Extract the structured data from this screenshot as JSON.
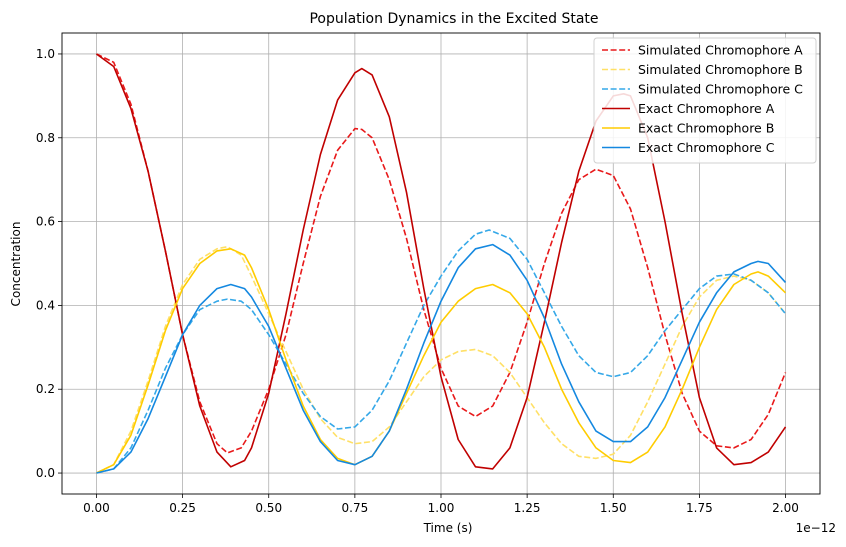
{
  "chart_data": {
    "type": "line",
    "title": "Population Dynamics in the Excited State",
    "xlabel": "Time (s)",
    "ylabel": "Concentration",
    "x_offset_label": "1e−12",
    "xlim": [
      -0.1,
      2.1
    ],
    "ylim": [
      -0.05,
      1.05
    ],
    "xticks": [
      0.0,
      0.25,
      0.5,
      0.75,
      1.0,
      1.25,
      1.5,
      1.75,
      2.0
    ],
    "xtick_labels": [
      "0.00",
      "0.25",
      "0.50",
      "0.75",
      "1.00",
      "1.25",
      "1.50",
      "1.75",
      "2.00"
    ],
    "yticks": [
      0.0,
      0.2,
      0.4,
      0.6,
      0.8,
      1.0
    ],
    "ytick_labels": [
      "0.0",
      "0.2",
      "0.4",
      "0.6",
      "0.8",
      "1.0"
    ],
    "grid": true,
    "legend_position": "top-right",
    "series": [
      {
        "name": "Simulated Chromophore A",
        "color": "#e8191a",
        "style": "dashed",
        "points": [
          [
            0.0,
            1.0
          ],
          [
            0.05,
            0.98
          ],
          [
            0.1,
            0.88
          ],
          [
            0.15,
            0.72
          ],
          [
            0.2,
            0.53
          ],
          [
            0.25,
            0.33
          ],
          [
            0.3,
            0.17
          ],
          [
            0.35,
            0.07
          ],
          [
            0.38,
            0.048
          ],
          [
            0.42,
            0.06
          ],
          [
            0.45,
            0.1
          ],
          [
            0.5,
            0.2
          ],
          [
            0.55,
            0.33
          ],
          [
            0.6,
            0.5
          ],
          [
            0.65,
            0.66
          ],
          [
            0.7,
            0.77
          ],
          [
            0.75,
            0.822
          ],
          [
            0.77,
            0.82
          ],
          [
            0.8,
            0.8
          ],
          [
            0.85,
            0.7
          ],
          [
            0.9,
            0.56
          ],
          [
            0.95,
            0.39
          ],
          [
            1.0,
            0.25
          ],
          [
            1.05,
            0.16
          ],
          [
            1.1,
            0.135
          ],
          [
            1.15,
            0.16
          ],
          [
            1.2,
            0.24
          ],
          [
            1.25,
            0.36
          ],
          [
            1.3,
            0.5
          ],
          [
            1.35,
            0.62
          ],
          [
            1.4,
            0.7
          ],
          [
            1.45,
            0.725
          ],
          [
            1.5,
            0.71
          ],
          [
            1.55,
            0.63
          ],
          [
            1.6,
            0.49
          ],
          [
            1.65,
            0.33
          ],
          [
            1.7,
            0.19
          ],
          [
            1.75,
            0.1
          ],
          [
            1.8,
            0.065
          ],
          [
            1.85,
            0.06
          ],
          [
            1.9,
            0.08
          ],
          [
            1.95,
            0.14
          ],
          [
            2.0,
            0.24
          ]
        ]
      },
      {
        "name": "Simulated Chromophore B",
        "color": "#ffe066",
        "style": "dashed",
        "points": [
          [
            0.0,
            0.0
          ],
          [
            0.05,
            0.02
          ],
          [
            0.1,
            0.1
          ],
          [
            0.15,
            0.22
          ],
          [
            0.2,
            0.35
          ],
          [
            0.25,
            0.45
          ],
          [
            0.3,
            0.51
          ],
          [
            0.35,
            0.535
          ],
          [
            0.38,
            0.54
          ],
          [
            0.42,
            0.52
          ],
          [
            0.45,
            0.47
          ],
          [
            0.5,
            0.38
          ],
          [
            0.55,
            0.29
          ],
          [
            0.6,
            0.2
          ],
          [
            0.65,
            0.13
          ],
          [
            0.7,
            0.085
          ],
          [
            0.75,
            0.07
          ],
          [
            0.8,
            0.075
          ],
          [
            0.85,
            0.11
          ],
          [
            0.9,
            0.17
          ],
          [
            0.95,
            0.23
          ],
          [
            1.0,
            0.27
          ],
          [
            1.05,
            0.29
          ],
          [
            1.1,
            0.295
          ],
          [
            1.15,
            0.28
          ],
          [
            1.2,
            0.24
          ],
          [
            1.25,
            0.18
          ],
          [
            1.3,
            0.12
          ],
          [
            1.35,
            0.07
          ],
          [
            1.4,
            0.04
          ],
          [
            1.45,
            0.035
          ],
          [
            1.5,
            0.045
          ],
          [
            1.55,
            0.09
          ],
          [
            1.6,
            0.17
          ],
          [
            1.65,
            0.26
          ],
          [
            1.7,
            0.35
          ],
          [
            1.75,
            0.42
          ],
          [
            1.8,
            0.46
          ],
          [
            1.85,
            0.47
          ],
          [
            1.9,
            0.46
          ],
          [
            1.95,
            0.43
          ],
          [
            2.0,
            0.38
          ]
        ]
      },
      {
        "name": "Simulated Chromophore C",
        "color": "#35a8e8",
        "style": "dashed",
        "points": [
          [
            0.0,
            0.0
          ],
          [
            0.05,
            0.01
          ],
          [
            0.1,
            0.06
          ],
          [
            0.15,
            0.15
          ],
          [
            0.2,
            0.25
          ],
          [
            0.25,
            0.33
          ],
          [
            0.3,
            0.39
          ],
          [
            0.35,
            0.41
          ],
          [
            0.38,
            0.415
          ],
          [
            0.42,
            0.41
          ],
          [
            0.45,
            0.39
          ],
          [
            0.5,
            0.33
          ],
          [
            0.55,
            0.26
          ],
          [
            0.6,
            0.19
          ],
          [
            0.65,
            0.135
          ],
          [
            0.7,
            0.105
          ],
          [
            0.75,
            0.11
          ],
          [
            0.8,
            0.15
          ],
          [
            0.85,
            0.22
          ],
          [
            0.9,
            0.31
          ],
          [
            0.95,
            0.4
          ],
          [
            1.0,
            0.47
          ],
          [
            1.05,
            0.53
          ],
          [
            1.1,
            0.57
          ],
          [
            1.14,
            0.58
          ],
          [
            1.2,
            0.56
          ],
          [
            1.25,
            0.51
          ],
          [
            1.3,
            0.43
          ],
          [
            1.35,
            0.35
          ],
          [
            1.4,
            0.28
          ],
          [
            1.45,
            0.24
          ],
          [
            1.5,
            0.23
          ],
          [
            1.55,
            0.24
          ],
          [
            1.6,
            0.28
          ],
          [
            1.65,
            0.34
          ],
          [
            1.7,
            0.39
          ],
          [
            1.75,
            0.44
          ],
          [
            1.8,
            0.47
          ],
          [
            1.85,
            0.475
          ],
          [
            1.9,
            0.46
          ],
          [
            1.95,
            0.43
          ],
          [
            2.0,
            0.38
          ]
        ]
      },
      {
        "name": "Exact Chromophore A",
        "color": "#c00000",
        "style": "solid",
        "points": [
          [
            0.0,
            1.0
          ],
          [
            0.05,
            0.97
          ],
          [
            0.1,
            0.87
          ],
          [
            0.15,
            0.72
          ],
          [
            0.2,
            0.53
          ],
          [
            0.25,
            0.33
          ],
          [
            0.3,
            0.16
          ],
          [
            0.35,
            0.05
          ],
          [
            0.39,
            0.015
          ],
          [
            0.43,
            0.03
          ],
          [
            0.45,
            0.06
          ],
          [
            0.5,
            0.19
          ],
          [
            0.55,
            0.38
          ],
          [
            0.6,
            0.58
          ],
          [
            0.65,
            0.76
          ],
          [
            0.7,
            0.89
          ],
          [
            0.75,
            0.955
          ],
          [
            0.77,
            0.965
          ],
          [
            0.8,
            0.95
          ],
          [
            0.85,
            0.85
          ],
          [
            0.9,
            0.67
          ],
          [
            0.95,
            0.44
          ],
          [
            1.0,
            0.23
          ],
          [
            1.05,
            0.08
          ],
          [
            1.1,
            0.015
          ],
          [
            1.15,
            0.01
          ],
          [
            1.2,
            0.06
          ],
          [
            1.25,
            0.18
          ],
          [
            1.3,
            0.36
          ],
          [
            1.35,
            0.55
          ],
          [
            1.4,
            0.72
          ],
          [
            1.45,
            0.84
          ],
          [
            1.5,
            0.9
          ],
          [
            1.53,
            0.905
          ],
          [
            1.55,
            0.9
          ],
          [
            1.6,
            0.8
          ],
          [
            1.65,
            0.6
          ],
          [
            1.7,
            0.38
          ],
          [
            1.75,
            0.18
          ],
          [
            1.8,
            0.06
          ],
          [
            1.85,
            0.02
          ],
          [
            1.9,
            0.025
          ],
          [
            1.95,
            0.05
          ],
          [
            2.0,
            0.11
          ]
        ]
      },
      {
        "name": "Exact Chromophore B",
        "color": "#ffcc00",
        "style": "solid",
        "points": [
          [
            0.0,
            0.0
          ],
          [
            0.05,
            0.02
          ],
          [
            0.1,
            0.09
          ],
          [
            0.15,
            0.21
          ],
          [
            0.2,
            0.34
          ],
          [
            0.25,
            0.44
          ],
          [
            0.3,
            0.5
          ],
          [
            0.35,
            0.53
          ],
          [
            0.39,
            0.535
          ],
          [
            0.43,
            0.52
          ],
          [
            0.45,
            0.49
          ],
          [
            0.5,
            0.39
          ],
          [
            0.55,
            0.27
          ],
          [
            0.6,
            0.16
          ],
          [
            0.65,
            0.08
          ],
          [
            0.7,
            0.035
          ],
          [
            0.75,
            0.02
          ],
          [
            0.8,
            0.04
          ],
          [
            0.85,
            0.1
          ],
          [
            0.9,
            0.19
          ],
          [
            0.95,
            0.28
          ],
          [
            1.0,
            0.36
          ],
          [
            1.05,
            0.41
          ],
          [
            1.1,
            0.44
          ],
          [
            1.15,
            0.45
          ],
          [
            1.2,
            0.43
          ],
          [
            1.25,
            0.38
          ],
          [
            1.3,
            0.3
          ],
          [
            1.35,
            0.2
          ],
          [
            1.4,
            0.12
          ],
          [
            1.45,
            0.06
          ],
          [
            1.5,
            0.03
          ],
          [
            1.55,
            0.025
          ],
          [
            1.6,
            0.05
          ],
          [
            1.65,
            0.11
          ],
          [
            1.7,
            0.2
          ],
          [
            1.75,
            0.3
          ],
          [
            1.8,
            0.39
          ],
          [
            1.85,
            0.45
          ],
          [
            1.9,
            0.475
          ],
          [
            1.92,
            0.48
          ],
          [
            1.95,
            0.47
          ],
          [
            2.0,
            0.43
          ]
        ]
      },
      {
        "name": "Exact Chromophore C",
        "color": "#1488e0",
        "style": "solid",
        "points": [
          [
            0.0,
            0.0
          ],
          [
            0.05,
            0.01
          ],
          [
            0.1,
            0.05
          ],
          [
            0.15,
            0.13
          ],
          [
            0.2,
            0.23
          ],
          [
            0.25,
            0.33
          ],
          [
            0.3,
            0.4
          ],
          [
            0.35,
            0.44
          ],
          [
            0.39,
            0.45
          ],
          [
            0.43,
            0.44
          ],
          [
            0.45,
            0.42
          ],
          [
            0.5,
            0.35
          ],
          [
            0.55,
            0.25
          ],
          [
            0.6,
            0.15
          ],
          [
            0.65,
            0.075
          ],
          [
            0.7,
            0.03
          ],
          [
            0.75,
            0.02
          ],
          [
            0.8,
            0.04
          ],
          [
            0.85,
            0.1
          ],
          [
            0.9,
            0.2
          ],
          [
            0.95,
            0.31
          ],
          [
            1.0,
            0.41
          ],
          [
            1.05,
            0.49
          ],
          [
            1.1,
            0.535
          ],
          [
            1.15,
            0.545
          ],
          [
            1.2,
            0.52
          ],
          [
            1.25,
            0.46
          ],
          [
            1.3,
            0.37
          ],
          [
            1.35,
            0.26
          ],
          [
            1.4,
            0.17
          ],
          [
            1.45,
            0.1
          ],
          [
            1.5,
            0.075
          ],
          [
            1.55,
            0.075
          ],
          [
            1.6,
            0.11
          ],
          [
            1.65,
            0.18
          ],
          [
            1.7,
            0.27
          ],
          [
            1.75,
            0.36
          ],
          [
            1.8,
            0.43
          ],
          [
            1.85,
            0.48
          ],
          [
            1.9,
            0.5
          ],
          [
            1.92,
            0.505
          ],
          [
            1.95,
            0.5
          ],
          [
            2.0,
            0.455
          ]
        ]
      }
    ]
  }
}
